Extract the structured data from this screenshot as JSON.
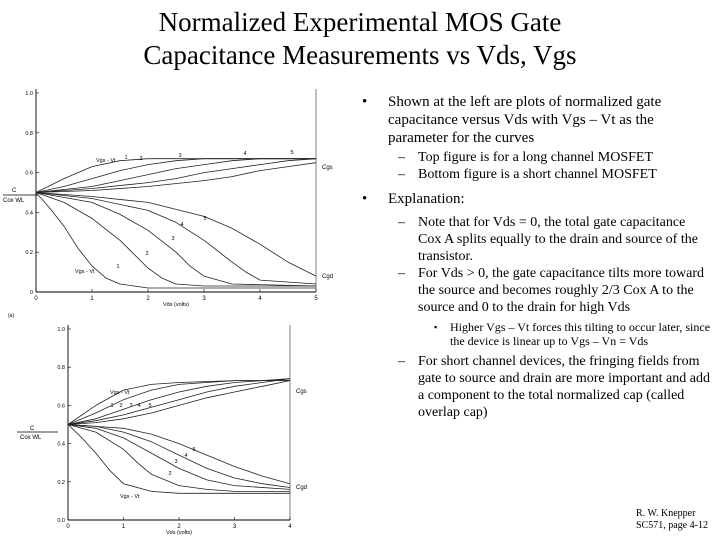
{
  "title": {
    "line1": "Normalized Experimental MOS Gate",
    "line2": "Capacitance Measurements vs Vds, Vgs"
  },
  "bullets": {
    "b1": "Shown at the left are plots of normalized gate capacitance versus Vds with Vgs – Vt as the parameter for the curves",
    "b1_sub1": "Top figure is for a long channel MOSFET",
    "b1_sub2": "Bottom figure is a short channel MOSFET",
    "b2": "Explanation:",
    "b2_sub1": "Note that for Vds = 0, the total gate capacitance Cox A splits equally to the drain and source of the transistor.",
    "b2_sub2": "For Vds > 0, the gate capacitance tilts more toward the source and becomes roughly 2/3 Cox A to the source and 0 to the drain for high Vds",
    "b2_sub2_sub1": "Higher Vgs – Vt forces this tilting to occur later, since the device is linear up to Vgs – Vn = Vds",
    "b2_sub3": "For short channel devices, the fringing fields from gate to source and drain are more important and add a component to the total normalized cap (called overlap cap)"
  },
  "markers": {
    "bullet": "•",
    "dash": "–",
    "small": "▪"
  },
  "credit": {
    "line1": "R. W. Knepper",
    "line2": "SC571, page 4-12"
  },
  "chart_data": [
    {
      "type": "line",
      "panel_label": "(a)",
      "ylabel_top": "C",
      "ylabel_bottom": "Cox WL",
      "xlabel": "Vds (volts)",
      "x_ticks": [
        "0",
        "1",
        "2",
        "3",
        "4",
        "5"
      ],
      "y_ticks": [
        "0",
        "0.2",
        "0.4",
        "0.6",
        "0.8",
        "1.0"
      ],
      "xlim": [
        0,
        5
      ],
      "ylim": [
        0,
        1.0
      ],
      "annotations": [
        "Vgs - Vt",
        "Vgs - Vt",
        "Cgs",
        "Cgd",
        "1",
        "2",
        "3",
        "4",
        "5",
        "1",
        "2",
        "3",
        "4",
        "5"
      ],
      "series": [
        {
          "group": "Cgs",
          "parameter": "1",
          "x": [
            0,
            0.5,
            1,
            1.5,
            2,
            3,
            4,
            5
          ],
          "y": [
            0.5,
            0.57,
            0.63,
            0.66,
            0.67,
            0.67,
            0.67,
            0.67
          ]
        },
        {
          "group": "Cgs",
          "parameter": "2",
          "x": [
            0,
            0.5,
            1,
            1.5,
            2,
            2.5,
            3,
            4,
            5
          ],
          "y": [
            0.5,
            0.53,
            0.57,
            0.61,
            0.64,
            0.66,
            0.67,
            0.67,
            0.67
          ]
        },
        {
          "group": "Cgs",
          "parameter": "3",
          "x": [
            0,
            1,
            1.5,
            2,
            2.5,
            3,
            3.5,
            4,
            5
          ],
          "y": [
            0.5,
            0.53,
            0.56,
            0.59,
            0.62,
            0.64,
            0.66,
            0.67,
            0.67
          ]
        },
        {
          "group": "Cgs",
          "parameter": "4",
          "x": [
            0,
            1,
            2,
            2.5,
            3,
            3.5,
            4,
            4.5,
            5
          ],
          "y": [
            0.5,
            0.52,
            0.55,
            0.57,
            0.6,
            0.62,
            0.64,
            0.66,
            0.67
          ]
        },
        {
          "group": "Cgs",
          "parameter": "5",
          "x": [
            0,
            1,
            2,
            3,
            3.5,
            4,
            4.5,
            5
          ],
          "y": [
            0.5,
            0.51,
            0.53,
            0.56,
            0.58,
            0.61,
            0.63,
            0.65
          ]
        },
        {
          "group": "Cgd",
          "parameter": "1",
          "x": [
            0,
            0.25,
            0.5,
            0.75,
            1,
            1.25,
            1.5,
            2,
            3,
            5
          ],
          "y": [
            0.5,
            0.42,
            0.33,
            0.22,
            0.13,
            0.07,
            0.04,
            0.02,
            0.02,
            0.02
          ]
        },
        {
          "group": "Cgd",
          "parameter": "2",
          "x": [
            0,
            0.5,
            1,
            1.5,
            1.75,
            2,
            2.25,
            2.5,
            3,
            5
          ],
          "y": [
            0.5,
            0.45,
            0.37,
            0.26,
            0.19,
            0.12,
            0.07,
            0.04,
            0.03,
            0.03
          ]
        },
        {
          "group": "Cgd",
          "parameter": "3",
          "x": [
            0,
            1,
            1.5,
            2,
            2.5,
            2.75,
            3,
            3.5,
            5
          ],
          "y": [
            0.5,
            0.45,
            0.39,
            0.31,
            0.2,
            0.13,
            0.08,
            0.04,
            0.03
          ]
        },
        {
          "group": "Cgd",
          "parameter": "4",
          "x": [
            0,
            1,
            2,
            2.5,
            3,
            3.5,
            3.75,
            4,
            5
          ],
          "y": [
            0.5,
            0.47,
            0.41,
            0.35,
            0.26,
            0.15,
            0.1,
            0.06,
            0.04
          ]
        },
        {
          "group": "Cgd",
          "parameter": "5",
          "x": [
            0,
            1,
            2,
            3,
            3.5,
            4,
            4.5,
            5
          ],
          "y": [
            0.5,
            0.48,
            0.45,
            0.38,
            0.32,
            0.24,
            0.15,
            0.08
          ]
        }
      ]
    },
    {
      "type": "line",
      "ylabel_top": "C",
      "ylabel_bottom": "Cox WL",
      "xlabel": "Vds (volts)",
      "x_ticks": [
        "0",
        "1",
        "2",
        "3",
        "4"
      ],
      "y_ticks": [
        "0.0",
        "0.2",
        "0.4",
        "0.6",
        "0.8",
        "1.0"
      ],
      "xlim": [
        0,
        4
      ],
      "ylim": [
        0,
        1.0
      ],
      "annotations": [
        "Vgs - Vt",
        "Vgs - Vt",
        "Cgs",
        "Cgd",
        "1",
        "2",
        "3",
        "4",
        "5",
        "2",
        "3",
        "4",
        "5"
      ],
      "series": [
        {
          "group": "Cgs",
          "parameter": "1",
          "x": [
            0,
            0.5,
            1,
            1.5,
            2,
            3,
            4
          ],
          "y": [
            0.5,
            0.6,
            0.68,
            0.71,
            0.72,
            0.73,
            0.73
          ]
        },
        {
          "group": "Cgs",
          "parameter": "2",
          "x": [
            0,
            0.5,
            1,
            1.5,
            2,
            2.5,
            3,
            4
          ],
          "y": [
            0.5,
            0.56,
            0.63,
            0.68,
            0.71,
            0.72,
            0.73,
            0.73
          ]
        },
        {
          "group": "Cgs",
          "parameter": "3",
          "x": [
            0,
            0.5,
            1,
            1.5,
            2,
            2.5,
            3,
            4
          ],
          "y": [
            0.5,
            0.53,
            0.58,
            0.63,
            0.67,
            0.7,
            0.72,
            0.74
          ]
        },
        {
          "group": "Cgs",
          "parameter": "4",
          "x": [
            0,
            0.5,
            1,
            1.5,
            2,
            2.5,
            3,
            4
          ],
          "y": [
            0.5,
            0.52,
            0.55,
            0.59,
            0.63,
            0.67,
            0.7,
            0.74
          ]
        },
        {
          "group": "Cgs",
          "parameter": "5",
          "x": [
            0,
            0.5,
            1,
            1.5,
            2,
            2.5,
            3,
            3.5,
            4
          ],
          "y": [
            0.5,
            0.51,
            0.53,
            0.56,
            0.6,
            0.64,
            0.67,
            0.7,
            0.73
          ]
        },
        {
          "group": "Cgd",
          "parameter": "1",
          "x": [
            0,
            0.25,
            0.5,
            0.75,
            1,
            1.5,
            2,
            3,
            4
          ],
          "y": [
            0.5,
            0.43,
            0.35,
            0.26,
            0.19,
            0.15,
            0.14,
            0.14,
            0.14
          ]
        },
        {
          "group": "Cgd",
          "parameter": "2",
          "x": [
            0,
            0.5,
            1,
            1.25,
            1.5,
            2,
            2.5,
            3,
            4
          ],
          "y": [
            0.5,
            0.46,
            0.37,
            0.3,
            0.24,
            0.18,
            0.16,
            0.15,
            0.15
          ]
        },
        {
          "group": "Cgd",
          "parameter": "3",
          "x": [
            0,
            0.5,
            1,
            1.5,
            2,
            2.5,
            3,
            4
          ],
          "y": [
            0.5,
            0.48,
            0.43,
            0.35,
            0.27,
            0.21,
            0.18,
            0.16
          ]
        },
        {
          "group": "Cgd",
          "parameter": "4",
          "x": [
            0,
            0.5,
            1,
            1.5,
            2,
            2.5,
            3,
            3.5,
            4
          ],
          "y": [
            0.5,
            0.49,
            0.46,
            0.41,
            0.34,
            0.27,
            0.22,
            0.19,
            0.17
          ]
        },
        {
          "group": "Cgd",
          "parameter": "5",
          "x": [
            0,
            0.5,
            1,
            1.5,
            2,
            2.5,
            3,
            3.5,
            4
          ],
          "y": [
            0.5,
            0.49,
            0.48,
            0.45,
            0.4,
            0.34,
            0.28,
            0.23,
            0.19
          ]
        }
      ]
    }
  ]
}
